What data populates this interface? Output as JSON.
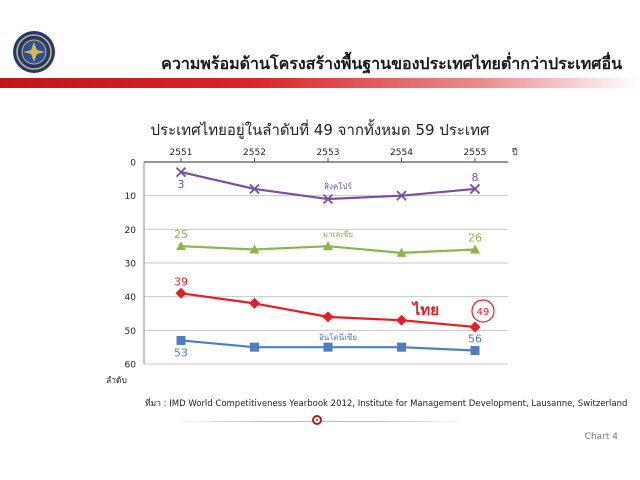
{
  "header": {
    "title": "ความพร้อมด้านโครงสร้างพื้นฐานของประเทศไทยต่ำกว่าประเทศอื่น",
    "logo_icon": "ministry-seal-icon"
  },
  "footer": {
    "source": "ที่มา : IMD World Competitiveness Yearbook 2012, Institute for Management Development, Lausanne, Switzerland",
    "page_label": "Chart 4"
  },
  "chart_data": {
    "type": "line",
    "title": "ประเทศไทยอยู่ในลำดับที่ 49 จากทั้งหมด 59 ประเทศ",
    "xlabel": "ปี",
    "ylabel": "ลำดับ",
    "categories": [
      "2551",
      "2552",
      "2553",
      "2554",
      "2555"
    ],
    "y_ticks": [
      0,
      10,
      20,
      30,
      40,
      50,
      60
    ],
    "ylim": [
      0,
      60
    ],
    "y_inverted": true,
    "x_axis_position": "top",
    "grid": true,
    "series": [
      {
        "name": "สิงคโปร์",
        "values": [
          3,
          8,
          11,
          10,
          8
        ],
        "color": "#7b4fa0",
        "marker": "x",
        "start_label": "3",
        "end_label": "8"
      },
      {
        "name": "มาเลเซีย",
        "values": [
          25,
          26,
          25,
          27,
          26
        ],
        "color": "#8ab64a",
        "marker": "triangle",
        "start_label": "25",
        "end_label": "26"
      },
      {
        "name": "ไทย",
        "values": [
          39,
          42,
          46,
          47,
          49
        ],
        "color": "#e41e26",
        "marker": "diamond",
        "start_label": "39",
        "end_label": "49"
      },
      {
        "name": "อินโดนีเซีย",
        "values": [
          53,
          55,
          55,
          55,
          56
        ],
        "color": "#4f7dc1",
        "marker": "square",
        "start_label": "53",
        "end_label": "56"
      }
    ]
  }
}
